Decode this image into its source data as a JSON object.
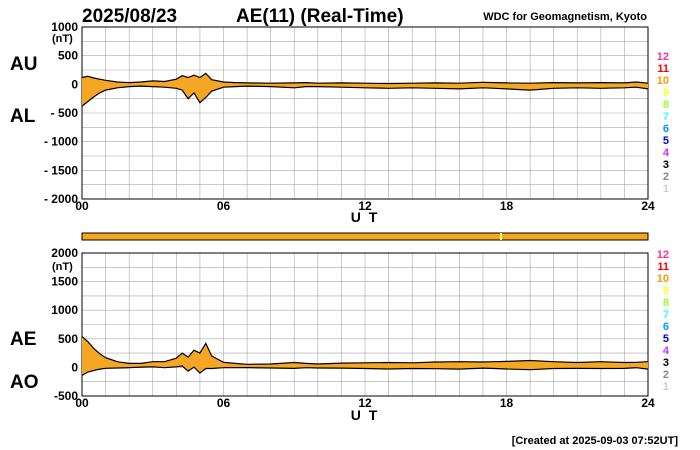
{
  "header": {
    "date": "2025/08/23",
    "title": "AE(11) (Real-Time)",
    "source": "WDC for Geomagnetism, Kyoto"
  },
  "footer": {
    "created": "[Created at 2025-09-03 07:52UT]"
  },
  "colors": {
    "fill": "#f5a623",
    "line": "#000000",
    "grid": "#a8a8a8",
    "bar_main": "#f5a623",
    "bar_highlight": "#ffff66"
  },
  "station_scale": [
    {
      "label": "12",
      "color": "#ff3399"
    },
    {
      "label": "11",
      "color": "#ff0000"
    },
    {
      "label": "10",
      "color": "#ff9900"
    },
    {
      "label": "9",
      "color": "#ffff33"
    },
    {
      "label": "8",
      "color": "#99ff33"
    },
    {
      "label": "7",
      "color": "#33ffff"
    },
    {
      "label": "6",
      "color": "#0099ff"
    },
    {
      "label": "5",
      "color": "#0000cc"
    },
    {
      "label": "4",
      "color": "#cc33ff"
    },
    {
      "label": "3",
      "color": "#000000"
    },
    {
      "label": "2",
      "color": "#888888"
    },
    {
      "label": "1",
      "color": "#cccccc"
    }
  ],
  "chart_data": [
    {
      "type": "area",
      "name": "AU/AL",
      "upper_label": "AU",
      "lower_label": "AL",
      "xlabel": "U T",
      "ylabel": "(nT)",
      "xlim": [
        0,
        24
      ],
      "ylim": [
        -2000,
        1000
      ],
      "x_ticks": [
        {
          "v": 0,
          "label": "00"
        },
        {
          "v": 6,
          "label": "06"
        },
        {
          "v": 12,
          "label": "12"
        },
        {
          "v": 18,
          "label": "18"
        },
        {
          "v": 24,
          "label": "24"
        }
      ],
      "y_ticks": [
        {
          "v": 1000,
          "label": "1000"
        },
        {
          "v": 500,
          "label": "500"
        },
        {
          "v": 0,
          "label": "0"
        },
        {
          "v": -500,
          "label": "- 500"
        },
        {
          "v": -1000,
          "label": "- 1000"
        },
        {
          "v": -1500,
          "label": "- 1500"
        },
        {
          "v": -2000,
          "label": "- 2000"
        }
      ],
      "x": [
        0,
        0.25,
        0.5,
        0.75,
        1,
        1.5,
        2,
        2.5,
        3,
        3.5,
        4,
        4.25,
        4.5,
        4.75,
        5,
        5.25,
        5.5,
        6,
        6.5,
        7,
        8,
        9,
        9.5,
        10,
        11,
        12,
        13,
        14,
        15,
        16,
        17,
        17.5,
        18,
        19,
        20,
        21,
        22,
        23,
        23.5,
        24
      ],
      "upper": [
        120,
        140,
        110,
        90,
        70,
        40,
        30,
        40,
        60,
        50,
        90,
        150,
        120,
        160,
        120,
        190,
        80,
        40,
        30,
        25,
        20,
        25,
        30,
        20,
        25,
        20,
        15,
        20,
        25,
        20,
        35,
        30,
        25,
        20,
        30,
        25,
        30,
        25,
        40,
        20
      ],
      "lower": [
        -380,
        -300,
        -220,
        -150,
        -100,
        -60,
        -40,
        -30,
        -40,
        -50,
        -70,
        -100,
        -250,
        -150,
        -320,
        -230,
        -120,
        -50,
        -40,
        -30,
        -40,
        -60,
        -40,
        -40,
        -50,
        -60,
        -70,
        -60,
        -70,
        -80,
        -60,
        -70,
        -80,
        -100,
        -70,
        -60,
        -70,
        -60,
        -50,
        -80
      ]
    },
    {
      "type": "area",
      "name": "AE/AO",
      "upper_label": "AE",
      "lower_label": "AO",
      "xlabel": "U T",
      "ylabel": "(nT)",
      "xlim": [
        0,
        24
      ],
      "ylim": [
        -500,
        2000
      ],
      "x_ticks": [
        {
          "v": 0,
          "label": "00"
        },
        {
          "v": 6,
          "label": "06"
        },
        {
          "v": 12,
          "label": "12"
        },
        {
          "v": 18,
          "label": "18"
        },
        {
          "v": 24,
          "label": "24"
        }
      ],
      "y_ticks": [
        {
          "v": 2000,
          "label": "2000"
        },
        {
          "v": 1500,
          "label": "1500"
        },
        {
          "v": 1000,
          "label": "1000"
        },
        {
          "v": 500,
          "label": "500"
        },
        {
          "v": 0,
          "label": "0"
        },
        {
          "v": -500,
          "label": "-500"
        }
      ],
      "x": [
        0,
        0.25,
        0.5,
        0.75,
        1,
        1.5,
        2,
        2.5,
        3,
        3.5,
        4,
        4.25,
        4.5,
        4.75,
        5,
        5.25,
        5.5,
        6,
        6.5,
        7,
        8,
        9,
        9.5,
        10,
        11,
        12,
        13,
        14,
        15,
        16,
        17,
        17.5,
        18,
        19,
        20,
        21,
        22,
        23,
        23.5,
        24
      ],
      "upper": [
        540,
        450,
        330,
        240,
        170,
        100,
        70,
        70,
        100,
        100,
        160,
        250,
        180,
        300,
        250,
        420,
        200,
        90,
        70,
        55,
        60,
        85,
        70,
        60,
        75,
        80,
        85,
        80,
        95,
        100,
        95,
        100,
        105,
        120,
        100,
        85,
        100,
        85,
        90,
        100
      ],
      "lower": [
        -140,
        -80,
        -55,
        -30,
        -15,
        -10,
        -5,
        5,
        10,
        -5,
        10,
        25,
        -65,
        5,
        -100,
        -20,
        -20,
        -5,
        -5,
        -3,
        -10,
        -18,
        -5,
        -10,
        -13,
        -20,
        -28,
        -20,
        -23,
        -30,
        -13,
        -20,
        -28,
        -40,
        -20,
        -18,
        -20,
        -18,
        -5,
        -30
      ]
    }
  ]
}
